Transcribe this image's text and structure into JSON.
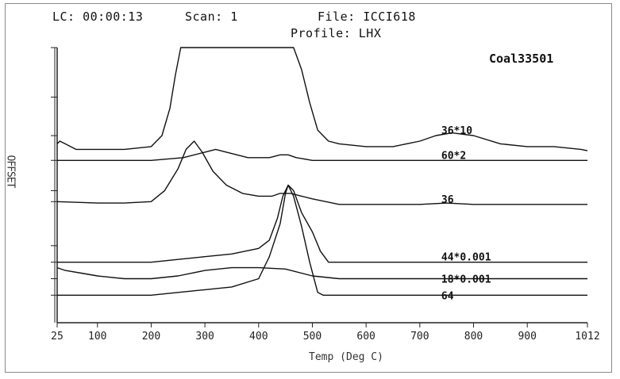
{
  "header": {
    "lc_label": "LC:",
    "lc_value": "00:00:13",
    "scan_label": "Scan:",
    "scan_value": "1",
    "file_label": "File:",
    "file_value": "ICCI618",
    "profile_label": "Profile:",
    "profile_value": "LHX"
  },
  "chart_data": {
    "type": "line",
    "title": "Coal33501",
    "xlabel": "Temp (Deg C)",
    "ylabel": "OFFSET",
    "xlim": [
      25,
      1012
    ],
    "ylim": [
      0,
      100
    ],
    "x_ticks": [
      "25",
      "100",
      "200",
      "300",
      "400",
      "500",
      "600",
      "700",
      "800",
      "900",
      "1012"
    ],
    "grid": false,
    "legend": "inline labels at right of each trace",
    "series": [
      {
        "name": "36*10",
        "label_at": [
          740,
          70
        ],
        "points": [
          [
            25,
            65
          ],
          [
            30,
            66
          ],
          [
            40,
            65
          ],
          [
            60,
            63
          ],
          [
            100,
            63
          ],
          [
            150,
            63
          ],
          [
            200,
            64
          ],
          [
            220,
            68
          ],
          [
            235,
            78
          ],
          [
            245,
            90
          ],
          [
            255,
            100
          ],
          [
            300,
            100
          ],
          [
            350,
            100
          ],
          [
            400,
            100
          ],
          [
            450,
            100
          ],
          [
            465,
            100
          ],
          [
            480,
            92
          ],
          [
            495,
            80
          ],
          [
            510,
            70
          ],
          [
            530,
            66
          ],
          [
            550,
            65
          ],
          [
            600,
            64
          ],
          [
            650,
            64
          ],
          [
            700,
            66
          ],
          [
            730,
            68
          ],
          [
            760,
            69
          ],
          [
            800,
            68
          ],
          [
            850,
            65
          ],
          [
            900,
            64
          ],
          [
            950,
            64
          ],
          [
            1000,
            63
          ],
          [
            1012,
            62.5
          ]
        ]
      },
      {
        "name": "60*2",
        "label_at": [
          740,
          61
        ],
        "points": [
          [
            25,
            59
          ],
          [
            100,
            59
          ],
          [
            200,
            59
          ],
          [
            260,
            60
          ],
          [
            300,
            62
          ],
          [
            320,
            63
          ],
          [
            340,
            62
          ],
          [
            380,
            60
          ],
          [
            420,
            60
          ],
          [
            440,
            61
          ],
          [
            455,
            61
          ],
          [
            470,
            60
          ],
          [
            500,
            59
          ],
          [
            600,
            59
          ],
          [
            800,
            59
          ],
          [
            1012,
            59
          ]
        ]
      },
      {
        "name": "36",
        "label_at": [
          740,
          45
        ],
        "points": [
          [
            25,
            44
          ],
          [
            100,
            43.5
          ],
          [
            150,
            43.5
          ],
          [
            200,
            44
          ],
          [
            225,
            48
          ],
          [
            250,
            56
          ],
          [
            265,
            63
          ],
          [
            280,
            66
          ],
          [
            295,
            62
          ],
          [
            315,
            55
          ],
          [
            340,
            50
          ],
          [
            370,
            47
          ],
          [
            400,
            46
          ],
          [
            425,
            46
          ],
          [
            440,
            47
          ],
          [
            460,
            47
          ],
          [
            480,
            46
          ],
          [
            500,
            45
          ],
          [
            550,
            43
          ],
          [
            600,
            43
          ],
          [
            700,
            43
          ],
          [
            750,
            43.5
          ],
          [
            800,
            43
          ],
          [
            1012,
            43
          ]
        ]
      },
      {
        "name": "44*0.001",
        "label_at": [
          740,
          24
        ],
        "points": [
          [
            25,
            22
          ],
          [
            100,
            22
          ],
          [
            200,
            22
          ],
          [
            250,
            23
          ],
          [
            300,
            24
          ],
          [
            350,
            25
          ],
          [
            400,
            27
          ],
          [
            420,
            30
          ],
          [
            435,
            38
          ],
          [
            445,
            46
          ],
          [
            455,
            50
          ],
          [
            465,
            48
          ],
          [
            480,
            40
          ],
          [
            500,
            33
          ],
          [
            515,
            26
          ],
          [
            530,
            22
          ],
          [
            600,
            22
          ],
          [
            800,
            22
          ],
          [
            1012,
            22
          ]
        ]
      },
      {
        "name": "18*0.001",
        "label_at": [
          740,
          16
        ],
        "points": [
          [
            25,
            20
          ],
          [
            40,
            19
          ],
          [
            70,
            18
          ],
          [
            100,
            17
          ],
          [
            150,
            16
          ],
          [
            200,
            16
          ],
          [
            250,
            17
          ],
          [
            300,
            19
          ],
          [
            350,
            20
          ],
          [
            400,
            20
          ],
          [
            450,
            19.5
          ],
          [
            500,
            17
          ],
          [
            550,
            16
          ],
          [
            700,
            16
          ],
          [
            1012,
            16
          ]
        ]
      },
      {
        "name": "64",
        "label_at": [
          740,
          10
        ],
        "points": [
          [
            25,
            10
          ],
          [
            100,
            10
          ],
          [
            200,
            10
          ],
          [
            250,
            11
          ],
          [
            300,
            12
          ],
          [
            350,
            13
          ],
          [
            400,
            16
          ],
          [
            420,
            24
          ],
          [
            440,
            36
          ],
          [
            450,
            47
          ],
          [
            455,
            50
          ],
          [
            465,
            46
          ],
          [
            480,
            35
          ],
          [
            495,
            22
          ],
          [
            510,
            11
          ],
          [
            520,
            10
          ],
          [
            700,
            10
          ],
          [
            1012,
            10
          ]
        ]
      }
    ]
  }
}
